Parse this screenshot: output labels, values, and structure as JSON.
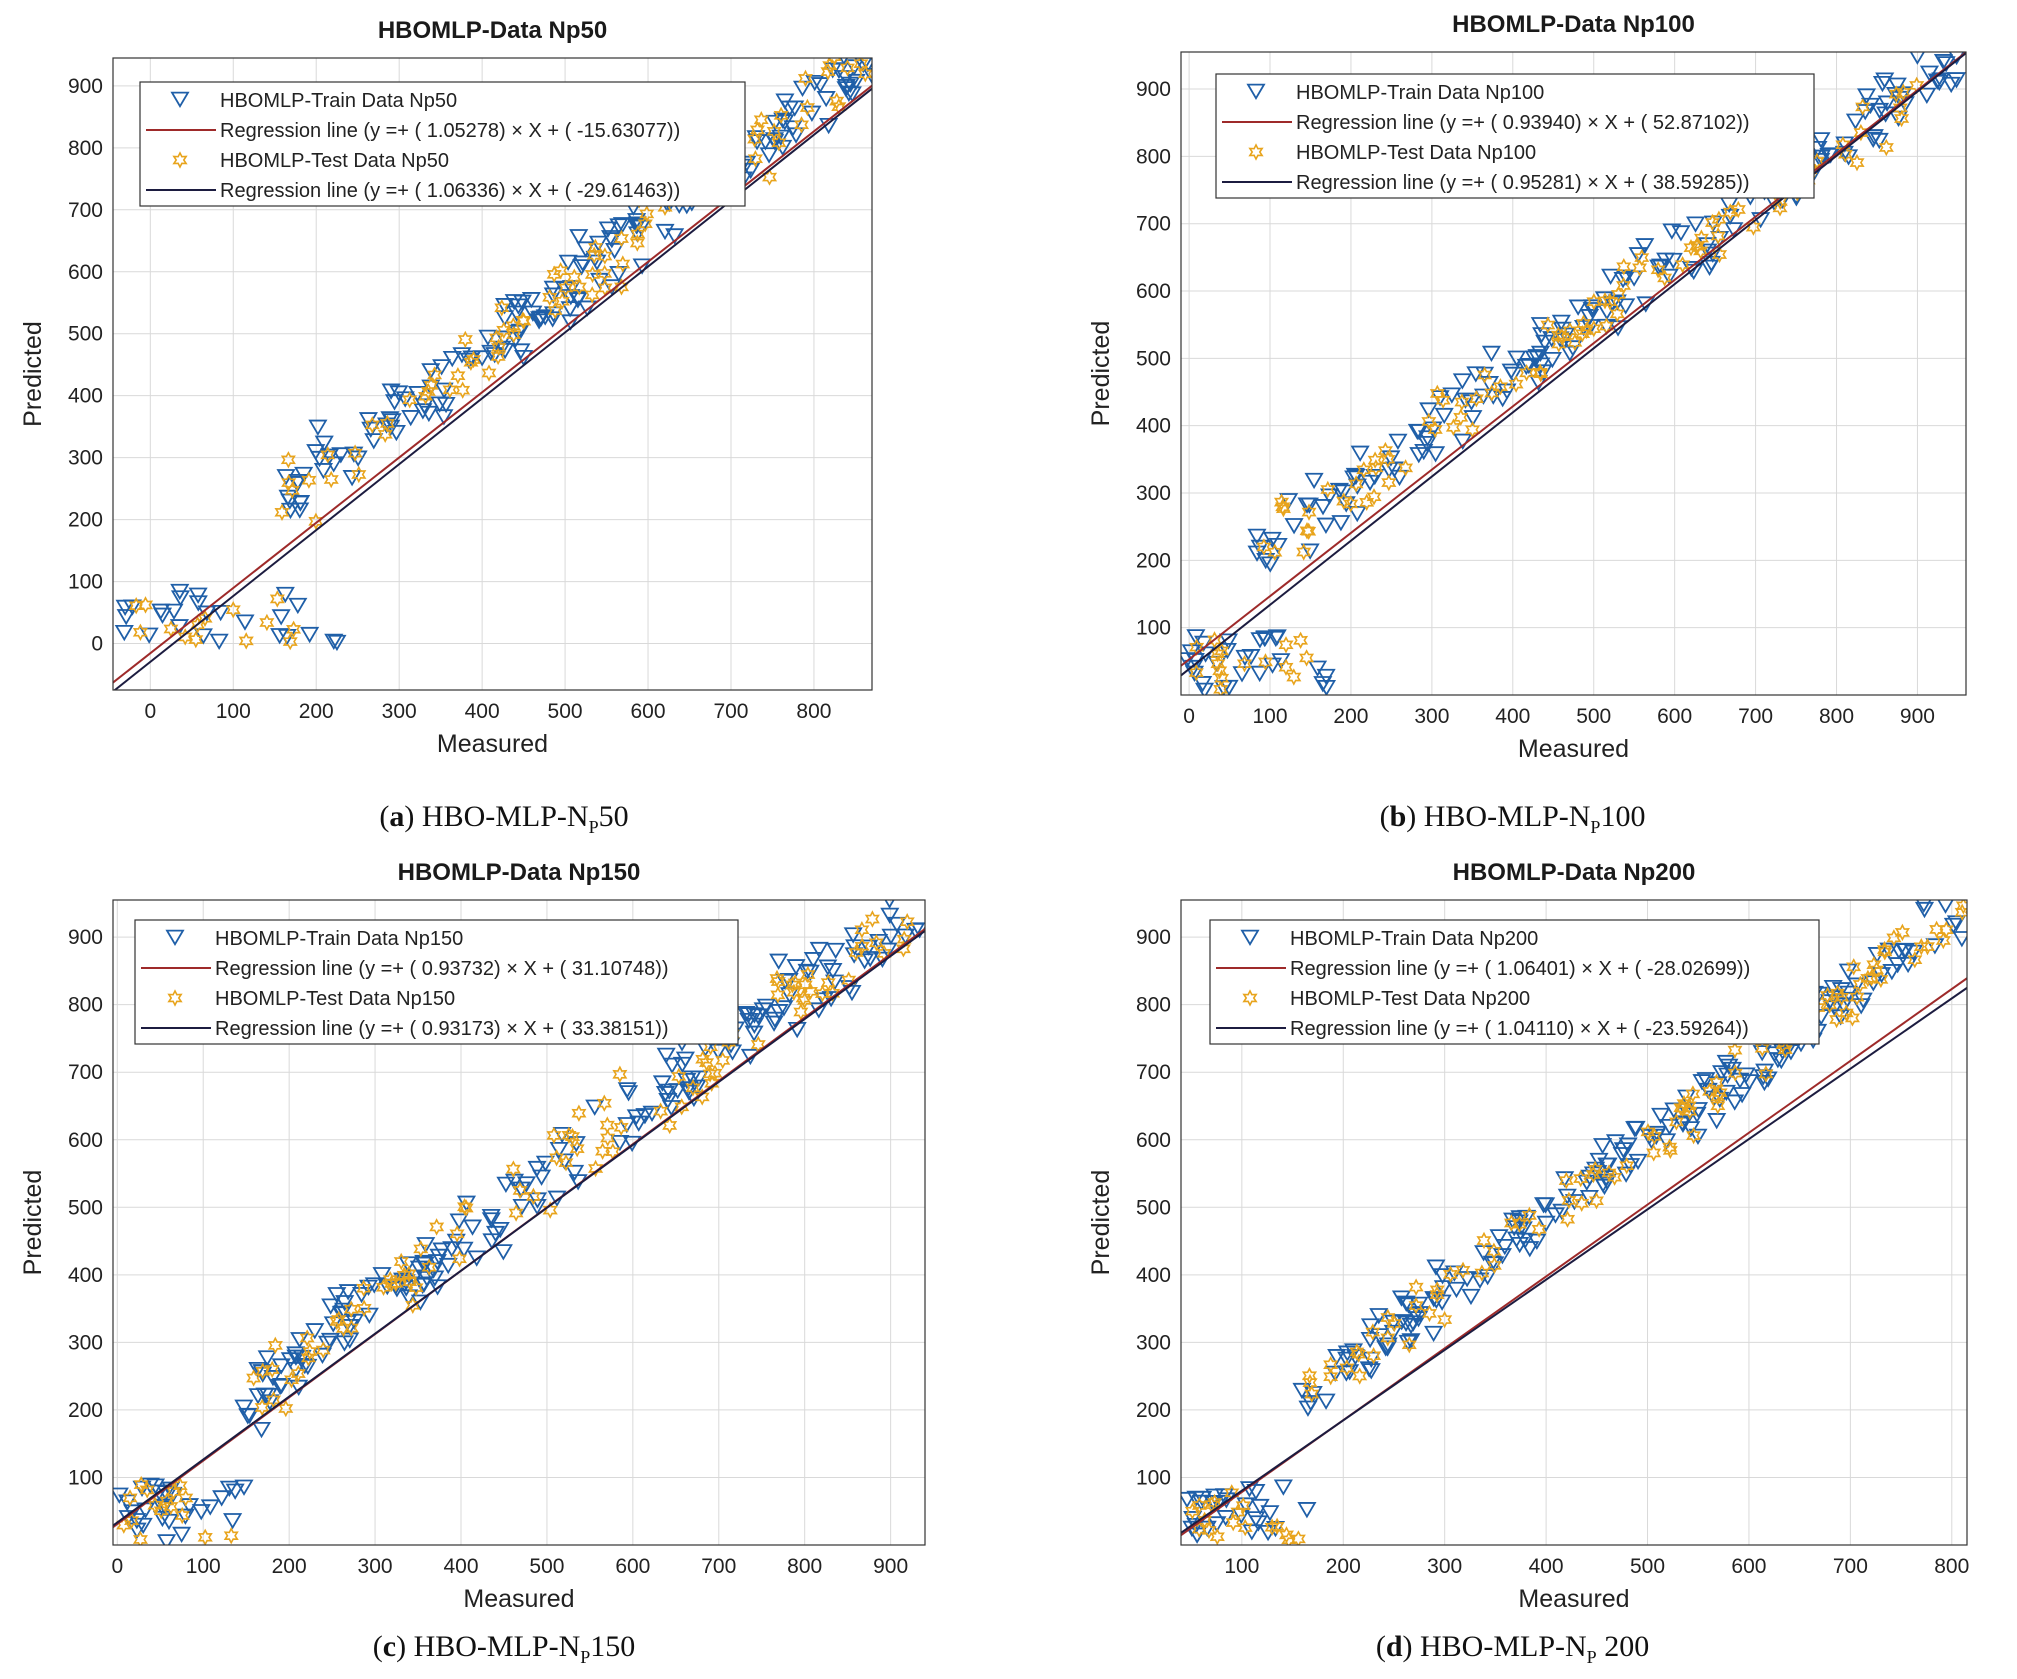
{
  "colors": {
    "train": "#1f5fa8",
    "test": "#e8a41c",
    "reg_train": "#9e2a2a",
    "reg_test": "#1c1c40",
    "grid": "#d9d9d9"
  },
  "chart_data": [
    {
      "type": "scatter",
      "title": "HBOMLP-Data Np50",
      "xlabel": "Measured",
      "ylabel": "Predicted",
      "xlim": [
        -45,
        870
      ],
      "ylim": [
        -75,
        945
      ],
      "xticks": [
        0,
        100,
        200,
        300,
        400,
        500,
        600,
        700,
        800
      ],
      "yticks": [
        0,
        100,
        200,
        300,
        400,
        500,
        600,
        700,
        800,
        900
      ],
      "grid": true,
      "legend_position": "top-left",
      "caption": {
        "letter": "a",
        "text": "HBO-MLP-N",
        "sub": "P",
        "tail": "50"
      },
      "series": [
        {
          "name": "HBOMLP-Train Data Np50",
          "marker": "triangle-down",
          "color_key": "train"
        },
        {
          "name": "Regression line (y =+ ( 1.05278) × X + ( -15.63077))",
          "line": true,
          "slope": 1.05278,
          "intercept": -15.63077,
          "color_key": "reg_train"
        },
        {
          "name": "HBOMLP-Test Data Np50",
          "marker": "hexagram",
          "color_key": "test"
        },
        {
          "name": "Regression line (y =+ ( 1.06336) × X + ( -29.61463))",
          "line": true,
          "slope": 1.06336,
          "intercept": -29.61463,
          "color_key": "reg_test"
        }
      ],
      "clusters": [
        {
          "x": [
            -40,
            230
          ],
          "y": [
            0,
            85
          ],
          "trend": "flat",
          "n_train": 26,
          "n_test": 14
        },
        {
          "x": [
            150,
            870
          ],
          "y": [
            220,
            945
          ],
          "trend": "diag",
          "spread": 45,
          "n_train": 175,
          "n_test": 90
        }
      ],
      "seed": 11
    },
    {
      "type": "scatter",
      "title": "HBOMLP-Data Np100",
      "xlabel": "Measured",
      "ylabel": "Predicted",
      "xlim": [
        -10,
        960
      ],
      "ylim": [
        0,
        955
      ],
      "xticks": [
        0,
        100,
        200,
        300,
        400,
        500,
        600,
        700,
        800,
        900
      ],
      "yticks": [
        100,
        200,
        300,
        400,
        500,
        600,
        700,
        800,
        900
      ],
      "grid": true,
      "legend_position": "top-left",
      "caption": {
        "letter": "b",
        "text": "HBO-MLP-N",
        "sub": "P",
        "tail": "100"
      },
      "series": [
        {
          "name": "HBOMLP-Train Data Np100",
          "marker": "triangle-down",
          "color_key": "train"
        },
        {
          "name": "Regression line (y =+ ( 0.93940) × X + ( 52.87102))",
          "line": true,
          "slope": 0.9394,
          "intercept": 52.87102,
          "color_key": "reg_train"
        },
        {
          "name": "HBOMLP-Test Data Np100",
          "marker": "hexagram",
          "color_key": "test"
        },
        {
          "name": "Regression line (y =+ ( 0.95281) × X + ( 38.59285))",
          "line": true,
          "slope": 0.95281,
          "intercept": 38.59285,
          "color_key": "reg_test"
        }
      ],
      "clusters": [
        {
          "x": [
            -5,
            170
          ],
          "y": [
            5,
            90
          ],
          "trend": "flat",
          "n_train": 30,
          "n_test": 16
        },
        {
          "x": [
            80,
            955
          ],
          "y": [
            210,
            945
          ],
          "trend": "diag",
          "spread": 40,
          "n_train": 180,
          "n_test": 95
        }
      ],
      "seed": 23
    },
    {
      "type": "scatter",
      "title": "HBOMLP-Data Np150",
      "xlabel": "Measured",
      "ylabel": "Predicted",
      "xlim": [
        -5,
        940
      ],
      "ylim": [
        0,
        955
      ],
      "xticks": [
        0,
        100,
        200,
        300,
        400,
        500,
        600,
        700,
        800,
        900
      ],
      "yticks": [
        100,
        200,
        300,
        400,
        500,
        600,
        700,
        800,
        900
      ],
      "grid": true,
      "legend_position": "top-left",
      "caption": {
        "letter": "c",
        "text": "HBO-MLP-N",
        "sub": "P",
        "tail": "150"
      },
      "series": [
        {
          "name": "HBOMLP-Train Data Np150",
          "marker": "triangle-down",
          "color_key": "train"
        },
        {
          "name": "Regression line (y =+ ( 0.93732) × X + ( 31.10748))",
          "line": true,
          "slope": 0.93732,
          "intercept": 31.10748,
          "color_key": "reg_train"
        },
        {
          "name": "HBOMLP-Test Data Np150",
          "marker": "hexagram",
          "color_key": "test"
        },
        {
          "name": "Regression line (y =+ ( 0.93173) × X + ( 33.38151))",
          "line": true,
          "slope": 0.93173,
          "intercept": 33.38151,
          "color_key": "reg_test"
        }
      ],
      "clusters": [
        {
          "x": [
            0,
            175
          ],
          "y": [
            5,
            90
          ],
          "trend": "flat",
          "n_train": 30,
          "n_test": 16
        },
        {
          "x": [
            145,
            935
          ],
          "y": [
            210,
            950
          ],
          "trend": "diag",
          "spread": 45,
          "n_train": 190,
          "n_test": 100
        }
      ],
      "seed": 37
    },
    {
      "type": "scatter",
      "title": "HBOMLP-Data Np200",
      "xlabel": "Measured",
      "ylabel": "Predicted",
      "xlim": [
        40,
        815
      ],
      "ylim": [
        0,
        955
      ],
      "xticks": [
        100,
        200,
        300,
        400,
        500,
        600,
        700,
        800
      ],
      "yticks": [
        100,
        200,
        300,
        400,
        500,
        600,
        700,
        800,
        900
      ],
      "grid": true,
      "legend_position": "top-left",
      "caption": {
        "letter": "d",
        "text": "HBO-MLP-N",
        "sub": "P",
        "tail": " 200"
      },
      "series": [
        {
          "name": "HBOMLP-Train Data Np200",
          "marker": "triangle-down",
          "color_key": "train"
        },
        {
          "name": "Regression line (y =+ ( 1.06401) × X + ( -28.02699))",
          "line": true,
          "slope": 1.06401,
          "intercept": -28.02699,
          "color_key": "reg_train"
        },
        {
          "name": "HBOMLP-Test Data Np200",
          "marker": "hexagram",
          "color_key": "test"
        },
        {
          "name": "Regression line (y =+ ( 1.04110) × X + ( -23.59264))",
          "line": true,
          "slope": 1.0411,
          "intercept": -23.59264,
          "color_key": "reg_test"
        }
      ],
      "clusters": [
        {
          "x": [
            45,
            165
          ],
          "y": [
            5,
            90
          ],
          "trend": "flat",
          "n_train": 30,
          "n_test": 18
        },
        {
          "x": [
            155,
            812
          ],
          "y": [
            215,
            945
          ],
          "trend": "diag",
          "spread": 35,
          "n_train": 190,
          "n_test": 100
        }
      ],
      "seed": 53
    }
  ]
}
